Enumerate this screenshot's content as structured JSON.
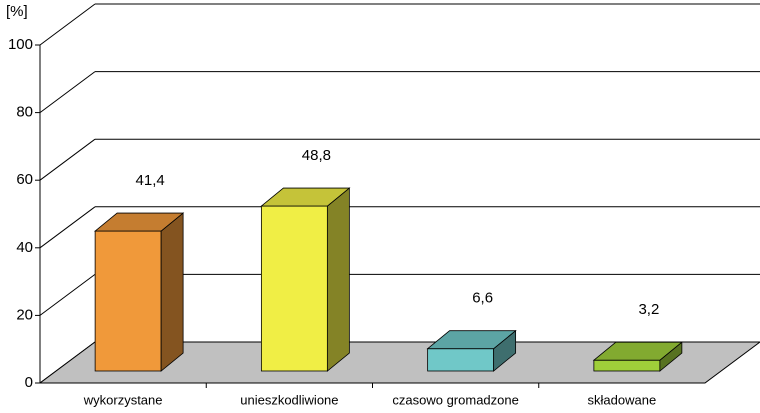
{
  "chart_data": {
    "type": "bar3d",
    "y_label": "[%]",
    "categories": [
      "wykorzystane",
      "unieszkodliwione",
      "czasowo gromadzone",
      "składowane"
    ],
    "values": [
      41.4,
      48.8,
      6.6,
      3.2
    ],
    "value_labels": [
      "41,4",
      "48,8",
      "6,6",
      "3,2"
    ],
    "colors": [
      "#f0993a",
      "#f0ee45",
      "#70c8c8",
      "#9fcf3a"
    ],
    "ylim": [
      0,
      100
    ],
    "yticks": [
      0,
      20,
      40,
      60,
      80,
      100
    ],
    "grid": true
  }
}
